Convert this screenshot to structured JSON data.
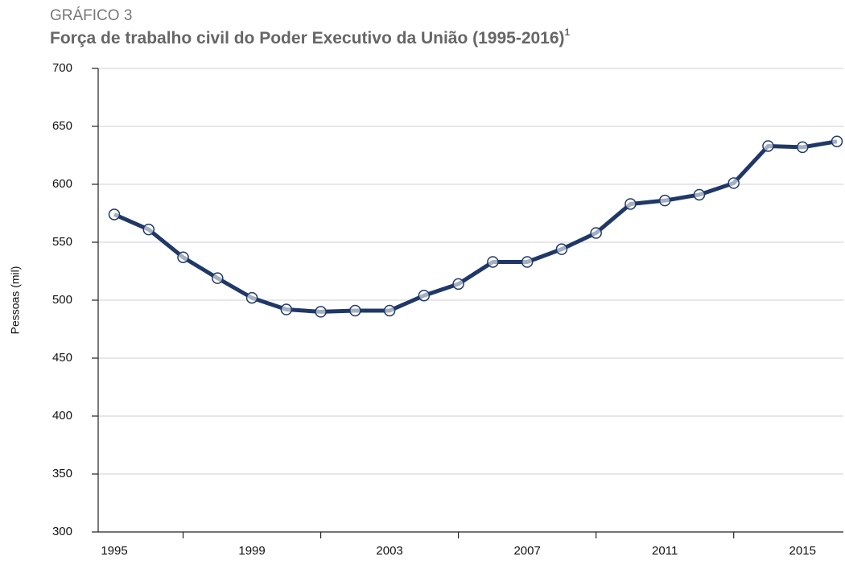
{
  "chart_data": {
    "type": "line",
    "kicker": "GRÁFICO 3",
    "title": "Força de trabalho civil do Poder Executivo da União (1995-2016)",
    "title_note": "1",
    "ylabel": "Pessoas (mil)",
    "categories": [
      "1995",
      null,
      null,
      null,
      "1999",
      null,
      null,
      null,
      "2003",
      null,
      null,
      null,
      "2007",
      null,
      null,
      null,
      "2011",
      null,
      null,
      null,
      "2015",
      null
    ],
    "series": [
      {
        "name": "Força de trabalho civil",
        "color": "#1f3868",
        "values": [
          574,
          561,
          537,
          519,
          502,
          492,
          490,
          491,
          491,
          504,
          514,
          533,
          533,
          544,
          558,
          583,
          586,
          591,
          601,
          633,
          632,
          637
        ]
      }
    ],
    "ylim": [
      300,
      700
    ],
    "yticks": [
      300,
      350,
      400,
      450,
      500,
      550,
      600,
      650,
      700
    ],
    "grid": true
  }
}
